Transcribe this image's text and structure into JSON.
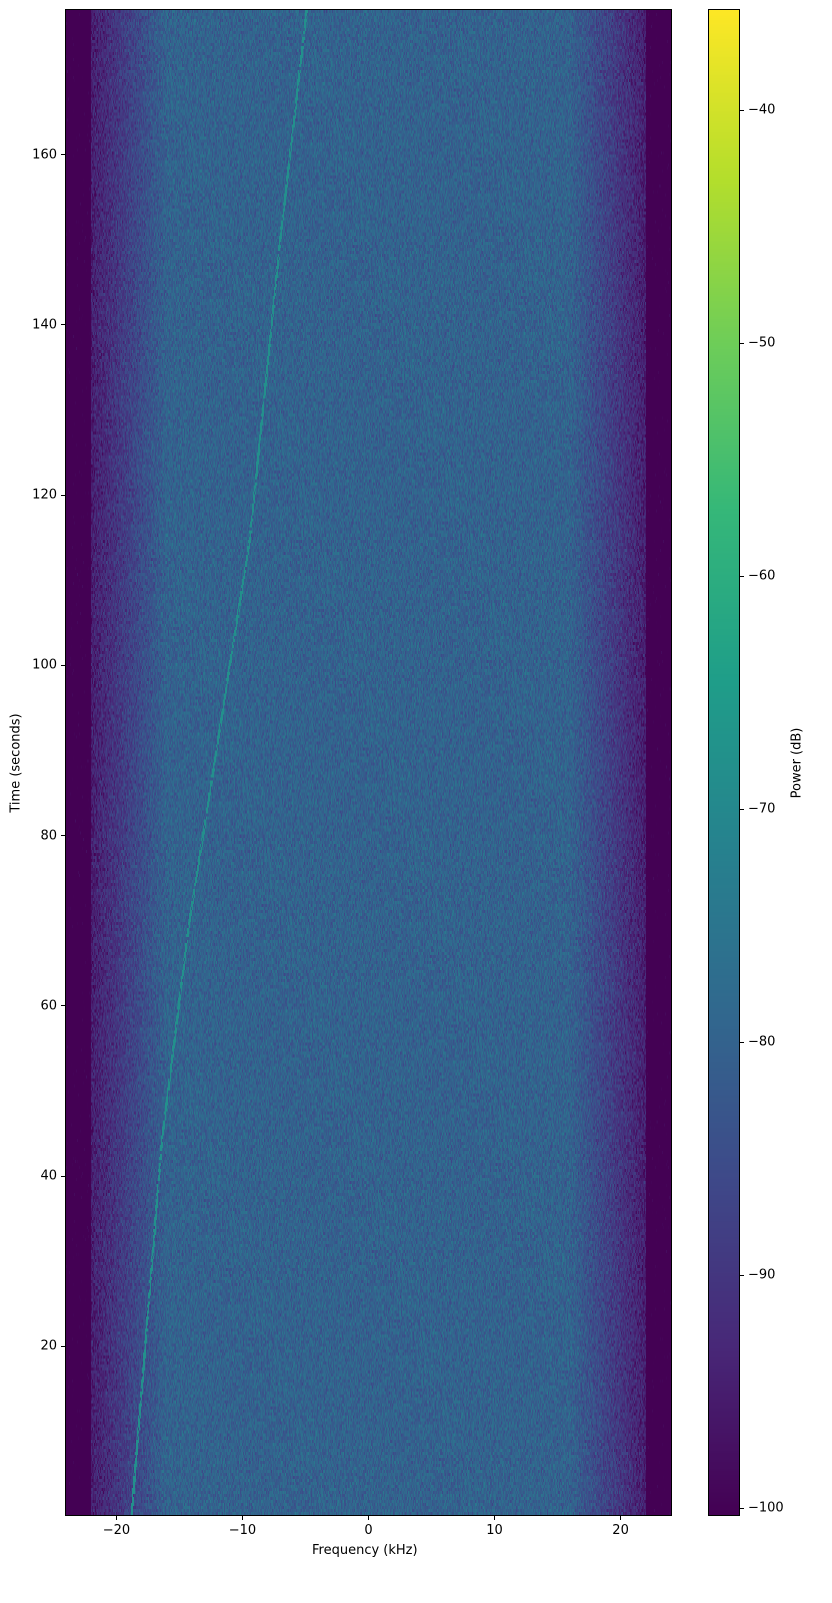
{
  "chart_data": {
    "type": "heatmap",
    "title": "",
    "xlabel": "Frequency (kHz)",
    "ylabel": "Time (seconds)",
    "colorbar_label": "Power (dB)",
    "colormap": "viridis",
    "xlim": [
      -24,
      24
    ],
    "ylim": [
      0.2,
      177
    ],
    "clim": [
      -100.3,
      -35.7
    ],
    "x_ticks": [
      -20,
      -10,
      0,
      10,
      20
    ],
    "x_tick_labels": [
      "−20",
      "−10",
      "0",
      "10",
      "20"
    ],
    "y_ticks": [
      20,
      40,
      60,
      80,
      100,
      120,
      140,
      160
    ],
    "y_tick_labels": [
      "20",
      "40",
      "60",
      "80",
      "100",
      "120",
      "140",
      "160"
    ],
    "colorbar_ticks": [
      -100,
      -90,
      -80,
      -70,
      -60,
      -50,
      -40
    ],
    "colorbar_tick_labels": [
      "−100",
      "−90",
      "−80",
      "−70",
      "−60",
      "−50",
      "−40"
    ],
    "noise_floor_db": -80,
    "band_edge_db": -100,
    "passband_khz": [
      -22,
      22
    ],
    "signal_track": {
      "power_db": -68,
      "points": [
        {
          "time": 2,
          "freq": -18.7
        },
        {
          "time": 44,
          "freq": -16.4
        },
        {
          "time": 69,
          "freq": -14.3
        },
        {
          "time": 115,
          "freq": -9.4
        },
        {
          "time": 150,
          "freq": -7.0
        },
        {
          "time": 177,
          "freq": -4.9
        }
      ]
    }
  }
}
